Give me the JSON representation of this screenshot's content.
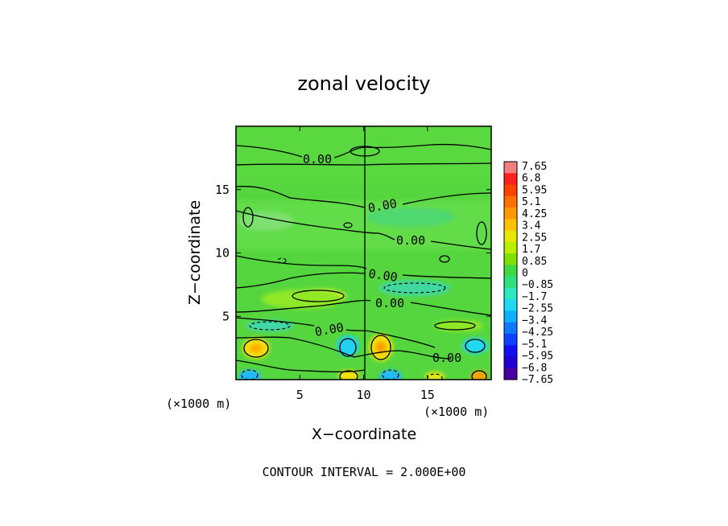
{
  "chart_data": {
    "type": "heatmap",
    "title": "zonal velocity",
    "xlabel": "X−coordinate",
    "ylabel": "Z−coordinate",
    "x_unit_left": "(×1000 m)",
    "x_unit_right": "(×1000 m)",
    "xlim": [
      0,
      20
    ],
    "ylim": [
      0,
      20
    ],
    "x_ticks": [
      5,
      10,
      15
    ],
    "x_tick_labels": [
      "5",
      "10",
      "15"
    ],
    "y_ticks": [
      5,
      10,
      15
    ],
    "y_tick_labels": [
      "5",
      "10",
      "15"
    ],
    "footer": "CONTOUR INTERVAL = 2.000E+00",
    "contour_labels": [
      "0.00",
      "0.00",
      "0.00",
      "0.00",
      "0.00",
      "0.00",
      "0.00"
    ],
    "colorbar": {
      "labels": [
        "7.65",
        "6.8",
        "5.95",
        "5.1",
        "4.25",
        "3.4",
        "2.55",
        "1.7",
        "0.85",
        "0",
        "−0.85",
        "−1.7",
        "−2.55",
        "−3.4",
        "−4.25",
        "−5.1",
        "−5.95",
        "−6.8",
        "−7.65"
      ],
      "colors": [
        "#f08080",
        "#ff2020",
        "#ff4400",
        "#ff7000",
        "#ff9800",
        "#ffc000",
        "#e8e800",
        "#b8f000",
        "#80e000",
        "#40d840",
        "#30e080",
        "#30e8c0",
        "#20d8f0",
        "#10b0ff",
        "#1078ff",
        "#1040ff",
        "#1010f0",
        "#2000d0",
        "#4800a0"
      ]
    }
  }
}
